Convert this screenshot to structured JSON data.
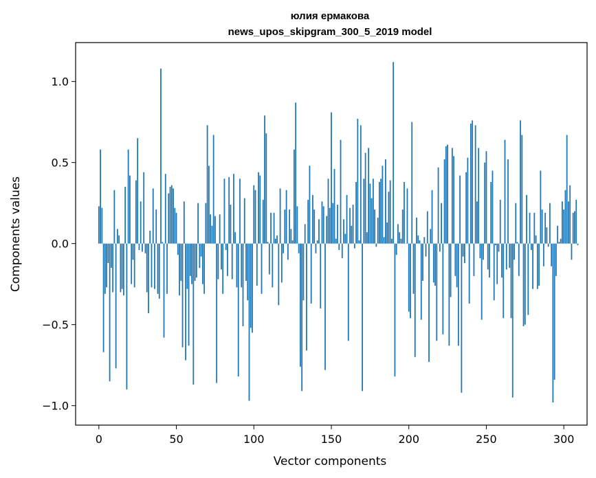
{
  "chart_data": {
    "type": "bar",
    "title": "юлия ермакова",
    "subtitle": "news_upos_skipgram_300_5_2019 model",
    "xlabel": "Vector components",
    "ylabel": "Components values",
    "xlim": [
      -15,
      315
    ],
    "ylim": [
      -1.12,
      1.24
    ],
    "xticks": [
      0,
      50,
      100,
      150,
      200,
      250,
      300
    ],
    "yticks": [
      -1.0,
      -0.5,
      0.0,
      0.5,
      1.0
    ],
    "xtick_labels": [
      "0",
      "50",
      "100",
      "150",
      "200",
      "250",
      "300"
    ],
    "ytick_labels": [
      "−1.0",
      "−0.5",
      "0.0",
      "0.5",
      "1.0"
    ],
    "grid": false,
    "bar_color": "#1f77b4",
    "values": [
      0.23,
      0.58,
      0.22,
      -0.67,
      -0.31,
      -0.27,
      -0.12,
      -0.85,
      -0.15,
      -0.3,
      0.33,
      -0.77,
      0.09,
      0.05,
      -0.3,
      -0.28,
      -0.32,
      0.35,
      -0.9,
      0.58,
      0.42,
      -0.25,
      -0.1,
      -0.27,
      0.39,
      0.65,
      -0.04,
      0.26,
      -0.05,
      0.44,
      -0.06,
      -0.3,
      -0.43,
      0.08,
      -0.27,
      0.34,
      -0.28,
      0.21,
      -0.31,
      -0.34,
      1.08,
      0.01,
      -0.58,
      0.43,
      -0.31,
      0.31,
      0.35,
      0.36,
      0.34,
      0.22,
      0.19,
      -0.07,
      -0.32,
      -0.23,
      -0.64,
      0.26,
      -0.72,
      -0.28,
      -0.63,
      -0.2,
      -0.25,
      -0.87,
      -0.23,
      -0.21,
      0.25,
      -0.15,
      -0.08,
      -0.25,
      -0.31,
      0.25,
      0.73,
      0.48,
      0.18,
      0.11,
      0.67,
      0.17,
      -0.86,
      -0.22,
      0.18,
      -0.16,
      -0.31,
      0.4,
      -0.04,
      -0.2,
      0.41,
      0.24,
      -0.22,
      0.43,
      0.07,
      -0.27,
      -0.82,
      0.4,
      -0.27,
      -0.51,
      0.28,
      -0.23,
      -0.35,
      -0.97,
      -0.52,
      -0.55,
      0.36,
      0.33,
      -0.26,
      0.44,
      0.42,
      -0.31,
      0.27,
      0.79,
      0.68,
      0.01,
      -0.19,
      0.19,
      -0.27,
      0.19,
      0.03,
      0.05,
      -0.38,
      0.34,
      -0.24,
      -0.06,
      0.21,
      0.33,
      -0.1,
      0.21,
      0.09,
      0.02,
      0.58,
      0.87,
      0.23,
      -0.06,
      -0.76,
      -0.91,
      -0.35,
      0.12,
      -0.66,
      0.27,
      0.48,
      -0.37,
      0.3,
      0.21,
      -0.06,
      0.02,
      0.15,
      -0.4,
      0.26,
      0.23,
      -0.78,
      0.17,
      0.4,
      0.22,
      0.81,
      0.25,
      0.46,
      0.03,
      0.24,
      -0.04,
      0.64,
      -0.09,
      0.15,
      0.06,
      0.3,
      -0.6,
      0.22,
      0.11,
      0.24,
      -0.03,
      0.38,
      0.77,
      0.02,
      0.73,
      -0.91,
      0.4,
      0.56,
      0.07,
      0.59,
      0.37,
      0.28,
      0.4,
      0.21,
      -0.02,
      0.16,
      0.38,
      0.4,
      0.48,
      0.04,
      0.52,
      0.13,
      0.32,
      0.39,
      0.03,
      1.12,
      -0.82,
      -0.07,
      0.12,
      0.07,
      0.03,
      0.21,
      0.38,
      0.0,
      0.34,
      -0.42,
      -0.46,
      0.75,
      -0.31,
      -0.7,
      0.16,
      0.05,
      0.02,
      -0.47,
      -0.23,
      0.04,
      -0.08,
      0.2,
      -0.73,
      0.09,
      0.33,
      -0.24,
      -0.26,
      -0.6,
      0.47,
      -0.05,
      0.25,
      -0.56,
      0.52,
      0.6,
      0.61,
      -0.63,
      -0.33,
      0.59,
      0.54,
      -0.2,
      -0.27,
      -0.63,
      0.42,
      -0.92,
      -0.08,
      -0.12,
      0.44,
      0.53,
      -0.37,
      0.74,
      0.76,
      -0.2,
      0.73,
      0.26,
      0.59,
      -0.09,
      -0.47,
      -0.1,
      0.5,
      0.57,
      -0.16,
      -0.21,
      0.38,
      0.45,
      -0.35,
      -0.01,
      -0.25,
      -0.05,
      0.27,
      -0.21,
      -0.46,
      0.64,
      -0.16,
      0.52,
      -0.15,
      -0.46,
      -0.95,
      -0.1,
      0.25,
      0.01,
      -0.2,
      0.76,
      0.67,
      -0.51,
      -0.5,
      0.3,
      -0.44,
      0.19,
      -0.04,
      -0.28,
      0.19,
      0.05,
      -0.28,
      -0.26,
      0.45,
      0.21,
      -0.14,
      0.19,
      0.1,
      -0.02,
      0.25,
      -0.14,
      -0.98,
      -0.84,
      -0.2,
      0.11,
      0.01,
      0.03,
      0.26,
      0.21,
      0.33,
      0.67,
      0.26,
      0.36,
      -0.1,
      0.19,
      0.2,
      0.27,
      -0.01
    ]
  }
}
